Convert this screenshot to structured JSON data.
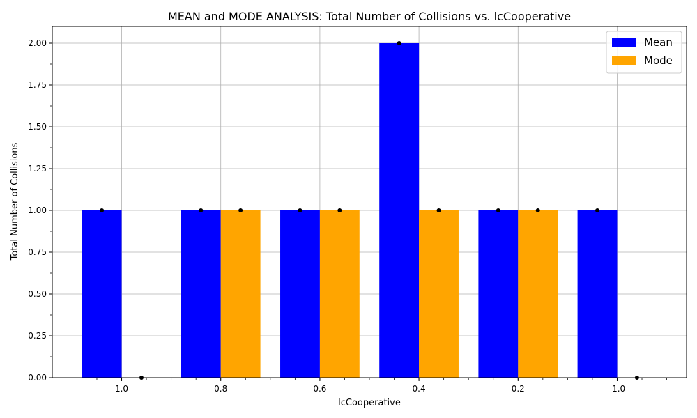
{
  "chart_data": {
    "type": "bar",
    "title": "MEAN and MODE ANALYSIS: Total Number of Collisions vs. lcCooperative",
    "xlabel": "lcCooperative",
    "ylabel": "Total Number of Collisions",
    "categories": [
      "1.0",
      "0.8",
      "0.6",
      "0.4",
      "0.2",
      "-1.0"
    ],
    "series": [
      {
        "name": "Mean",
        "color": "#0000ff",
        "values": [
          1,
          1,
          1,
          2,
          1,
          1
        ]
      },
      {
        "name": "Mode",
        "color": "#ffa500",
        "values": [
          0,
          1,
          1,
          1,
          1,
          0
        ]
      }
    ],
    "ylim": [
      0,
      2.1
    ],
    "yticks": [
      "0.00",
      "0.25",
      "0.50",
      "0.75",
      "1.00",
      "1.25",
      "1.50",
      "1.75",
      "2.00"
    ],
    "grid": true,
    "legend_position": "top-right",
    "marker_color": "#000000"
  }
}
